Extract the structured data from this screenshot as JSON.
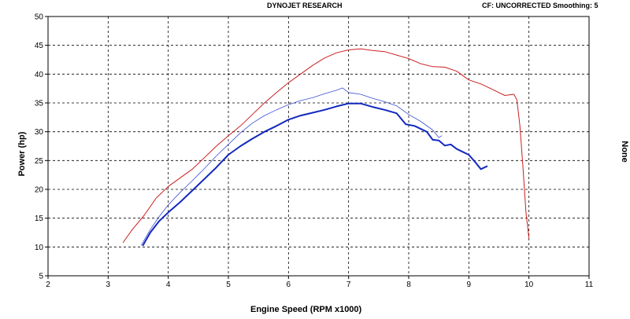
{
  "header": {
    "title": "DYNOJET RESEARCH",
    "subtitle": "CF: UNCORRECTED  Smoothing: 5"
  },
  "chart_data": {
    "type": "line",
    "title": "DYNOJET RESEARCH",
    "xlabel": "Engine Speed (RPM x1000)",
    "ylabel": "Power (hp)",
    "y2label": "None",
    "xlim": [
      2,
      11
    ],
    "ylim": [
      5,
      50
    ],
    "xticks": [
      2,
      3,
      4,
      5,
      6,
      7,
      8,
      9,
      10,
      11
    ],
    "yticks": [
      5,
      10,
      15,
      20,
      25,
      30,
      35,
      40,
      45,
      50
    ],
    "grid": true,
    "series": [
      {
        "color": "#cc2020",
        "width": 1,
        "x": [
          3.25,
          3.4,
          3.6,
          3.8,
          4.0,
          4.2,
          4.4,
          4.6,
          4.8,
          5.0,
          5.2,
          5.4,
          5.6,
          5.8,
          6.0,
          6.2,
          6.4,
          6.6,
          6.8,
          7.0,
          7.2,
          7.4,
          7.6,
          7.8,
          8.0,
          8.2,
          8.4,
          8.6,
          8.8,
          9.0,
          9.2,
          9.4,
          9.6,
          9.75,
          9.8,
          9.85,
          9.9,
          9.95,
          10.0
        ],
        "y": [
          10.8,
          13.0,
          15.5,
          18.5,
          20.5,
          22.0,
          23.5,
          25.5,
          27.5,
          29.3,
          31.0,
          33.0,
          35.0,
          36.8,
          38.5,
          40.0,
          41.5,
          42.8,
          43.7,
          44.2,
          44.4,
          44.1,
          43.9,
          43.3,
          42.7,
          41.8,
          41.3,
          41.2,
          40.5,
          39.0,
          38.3,
          37.3,
          36.3,
          36.5,
          35.5,
          31.0,
          24.0,
          16.0,
          11.5
        ]
      },
      {
        "color": "#3a4fd0",
        "width": 0.8,
        "x": [
          3.55,
          3.7,
          3.85,
          4.0,
          4.2,
          4.4,
          4.6,
          4.8,
          5.0,
          5.2,
          5.4,
          5.6,
          5.8,
          6.0,
          6.2,
          6.4,
          6.6,
          6.8,
          6.9,
          7.0,
          7.2,
          7.4,
          7.6,
          7.8,
          8.0,
          8.2,
          8.4,
          8.5,
          8.55
        ],
        "y": [
          10.3,
          13.0,
          15.3,
          17.3,
          19.5,
          21.5,
          23.6,
          25.8,
          27.8,
          29.8,
          31.5,
          32.8,
          33.8,
          34.7,
          35.4,
          35.9,
          36.6,
          37.2,
          37.6,
          36.8,
          36.5,
          35.8,
          35.2,
          34.5,
          33.0,
          31.8,
          30.3,
          29.0,
          29.3
        ]
      },
      {
        "color": "#1228c0",
        "width": 2,
        "x": [
          3.58,
          3.7,
          3.85,
          4.0,
          4.2,
          4.4,
          4.6,
          4.8,
          5.0,
          5.2,
          5.4,
          5.6,
          5.8,
          6.0,
          6.2,
          6.4,
          6.6,
          6.8,
          7.0,
          7.2,
          7.4,
          7.6,
          7.8,
          7.95,
          8.1,
          8.3,
          8.4,
          8.5,
          8.6,
          8.7,
          8.8,
          8.9,
          9.0,
          9.1,
          9.2,
          9.3
        ],
        "y": [
          10.3,
          12.5,
          14.5,
          16.0,
          17.8,
          19.8,
          21.8,
          23.8,
          26.0,
          27.5,
          28.8,
          30.0,
          31.0,
          32.1,
          32.8,
          33.3,
          33.8,
          34.4,
          34.9,
          34.9,
          34.3,
          33.8,
          33.2,
          31.3,
          31.0,
          30.0,
          28.6,
          28.5,
          27.6,
          27.8,
          27.0,
          26.5,
          26.0,
          24.8,
          23.5,
          24.0
        ]
      }
    ]
  }
}
